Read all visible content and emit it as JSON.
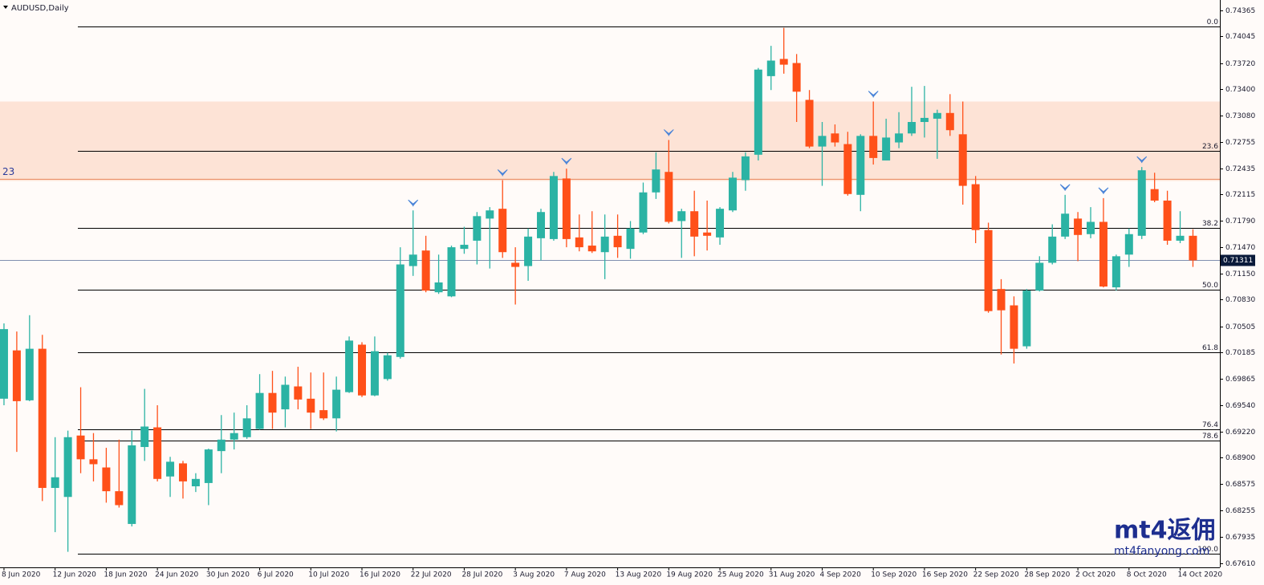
{
  "chart_data": {
    "type": "candlestick",
    "title": "AUDUSD,Daily",
    "categories": [
      "8 Jun 2020",
      null,
      null,
      null,
      "12 Jun 2020",
      null,
      null,
      null,
      "18 Jun 2020",
      null,
      null,
      null,
      "24 Jun 2020",
      null,
      null,
      null,
      "30 Jun 2020",
      null,
      null,
      null,
      "6 Jul 2020",
      null,
      null,
      null,
      "10 Jul 2020",
      null,
      null,
      null,
      "16 Jul 2020",
      null,
      null,
      null,
      "22 Jul 2020",
      null,
      null,
      null,
      "28 Jul 2020",
      null,
      null,
      null,
      "3 Aug 2020",
      null,
      null,
      null,
      "7 Aug 2020",
      null,
      null,
      null,
      "13 Aug 2020",
      null,
      null,
      null,
      "19 Aug 2020",
      null,
      null,
      null,
      "25 Aug 2020",
      null,
      null,
      null,
      "31 Aug 2020",
      null,
      null,
      null,
      "4 Sep 2020",
      null,
      null,
      null,
      "10 Sep 2020",
      null,
      null,
      null,
      "16 Sep 2020",
      null,
      null,
      null,
      "22 Sep 2020",
      null,
      null,
      null,
      "28 Sep 2020",
      null,
      null,
      null,
      "2 Oct 2020",
      null,
      null,
      null,
      "8 Oct 2020",
      null,
      null,
      null,
      "14 Oct 2020",
      null
    ],
    "open": [
      0.6962,
      0.7021,
      0.696,
      0.7023,
      0.6853,
      0.6842,
      0.6917,
      0.6888,
      0.6878,
      0.6849,
      0.6809,
      0.6903,
      0.6927,
      0.6867,
      0.6883,
      0.6855,
      0.6859,
      0.6898,
      0.6912,
      0.6915,
      0.6925,
      0.6969,
      0.6949,
      0.6977,
      0.6962,
      0.6948,
      0.6938,
      0.697,
      0.7028,
      0.6966,
      0.6986,
      0.7013,
      0.7124,
      0.7143,
      0.7092,
      0.7087,
      0.7145,
      0.7155,
      0.7182,
      0.7194,
      0.7128,
      0.7124,
      0.7158,
      0.7157,
      0.7231,
      0.7159,
      0.7149,
      0.7141,
      0.7161,
      0.7145,
      0.7165,
      0.7214,
      0.7239,
      0.7179,
      0.7191,
      0.7165,
      0.7159,
      0.7192,
      0.7229,
      0.726,
      0.7356,
      0.7377,
      0.7372,
      0.7327,
      0.727,
      0.7286,
      0.7273,
      0.7211,
      0.7283,
      0.7253,
      0.7275,
      0.7286,
      0.73,
      0.7304,
      0.7311,
      0.7285,
      0.7224,
      0.7168,
      0.7096,
      0.7076,
      0.7026,
      0.7094,
      0.7128,
      0.716,
      0.7182,
      0.7163,
      0.7178,
      0.7098,
      0.7138,
      0.7161,
      0.7218,
      0.7204,
      0.7155,
      0.7161
    ],
    "high": [
      0.7054,
      0.7044,
      0.7064,
      0.704,
      0.6915,
      0.6923,
      0.6976,
      0.692,
      0.6902,
      0.6912,
      0.6923,
      0.6974,
      0.6954,
      0.6891,
      0.6886,
      0.6871,
      0.6901,
      0.6942,
      0.6945,
      0.6954,
      0.6992,
      0.6996,
      0.6989,
      0.7001,
      0.6994,
      0.6994,
      0.6989,
      0.7038,
      0.7031,
      0.7038,
      0.7018,
      0.7147,
      0.7192,
      0.7161,
      0.7138,
      0.7149,
      0.7172,
      0.719,
      0.7196,
      0.7229,
      0.7147,
      0.717,
      0.7194,
      0.7239,
      0.7243,
      0.7187,
      0.7191,
      0.7187,
      0.7187,
      0.7179,
      0.7226,
      0.7263,
      0.7278,
      0.7194,
      0.7216,
      0.7204,
      0.7196,
      0.7239,
      0.7263,
      0.7366,
      0.7393,
      0.7415,
      0.7383,
      0.7339,
      0.73,
      0.7297,
      0.7288,
      0.7285,
      0.7325,
      0.7304,
      0.7312,
      0.7343,
      0.7344,
      0.7315,
      0.7334,
      0.7325,
      0.7234,
      0.7177,
      0.7108,
      0.7087,
      0.7096,
      0.7136,
      0.7175,
      0.7211,
      0.719,
      0.7196,
      0.7207,
      0.7138,
      0.717,
      0.7245,
      0.7238,
      0.7216,
      0.7191,
      0.7169
    ],
    "low": [
      0.6954,
      0.6897,
      0.6959,
      0.6837,
      0.6799,
      0.6775,
      0.6871,
      0.6861,
      0.6835,
      0.6829,
      0.6806,
      0.6886,
      0.6861,
      0.6842,
      0.684,
      0.6848,
      0.6832,
      0.6871,
      0.69,
      0.6913,
      0.6924,
      0.6925,
      0.6927,
      0.6949,
      0.6925,
      0.6936,
      0.6922,
      0.6969,
      0.6964,
      0.6965,
      0.6984,
      0.7011,
      0.7112,
      0.7092,
      0.709,
      0.7086,
      0.7139,
      0.7126,
      0.7121,
      0.7134,
      0.7077,
      0.7106,
      0.7131,
      0.7155,
      0.7147,
      0.7142,
      0.714,
      0.7108,
      0.7134,
      0.7133,
      0.7163,
      0.7206,
      0.7176,
      0.7134,
      0.7136,
      0.7143,
      0.715,
      0.719,
      0.7216,
      0.7253,
      0.7339,
      0.7359,
      0.73,
      0.7268,
      0.7222,
      0.727,
      0.721,
      0.7191,
      0.7248,
      0.7253,
      0.7268,
      0.7283,
      0.7281,
      0.7255,
      0.7283,
      0.7199,
      0.7152,
      0.7067,
      0.7016,
      0.7005,
      0.7023,
      0.7093,
      0.7126,
      0.7157,
      0.713,
      0.7158,
      0.7098,
      0.7094,
      0.7123,
      0.7157,
      0.7202,
      0.715,
      0.7152,
      0.7123
    ],
    "close": [
      0.7047,
      0.6959,
      0.7023,
      0.6853,
      0.6866,
      0.6915,
      0.6888,
      0.6882,
      0.6849,
      0.6832,
      0.6905,
      0.6928,
      0.6864,
      0.6885,
      0.6861,
      0.6864,
      0.69,
      0.6912,
      0.692,
      0.6938,
      0.6969,
      0.6945,
      0.6979,
      0.6961,
      0.6945,
      0.6938,
      0.6973,
      0.7033,
      0.6966,
      0.702,
      0.7015,
      0.7126,
      0.7138,
      0.7094,
      0.7104,
      0.7147,
      0.715,
      0.7185,
      0.7192,
      0.7141,
      0.7123,
      0.716,
      0.719,
      0.7234,
      0.7157,
      0.7147,
      0.7142,
      0.716,
      0.7147,
      0.717,
      0.7214,
      0.7242,
      0.7178,
      0.7191,
      0.716,
      0.7161,
      0.7194,
      0.7232,
      0.7258,
      0.7364,
      0.7375,
      0.737,
      0.7337,
      0.727,
      0.7283,
      0.7275,
      0.7212,
      0.7283,
      0.7256,
      0.7281,
      0.7286,
      0.73,
      0.7305,
      0.7311,
      0.729,
      0.7222,
      0.7168,
      0.7069,
      0.707,
      0.7023,
      0.7094,
      0.7128,
      0.716,
      0.7188,
      0.7162,
      0.7178,
      0.7099,
      0.7136,
      0.7163,
      0.7241,
      0.7204,
      0.7155,
      0.7161,
      0.7131
    ],
    "up_color": "#2bb3a4",
    "down_color": "#ff5019",
    "ylim": [
      0.6756,
      0.7449
    ],
    "yticks": [
      0.74365,
      0.74045,
      {
        "value": 0.7372,
        "label": "0.73720"
      },
      {
        "value": 0.734,
        "label": "0.73400"
      },
      {
        "value": 0.7308,
        "label": "0.73080"
      },
      0.72755,
      0.72435,
      0.72115,
      {
        "value": 0.7179,
        "label": "0.71790"
      },
      {
        "value": 0.7147,
        "label": "0.71470"
      },
      {
        "value": 0.7115,
        "label": "0.71150"
      },
      {
        "value": 0.7083,
        "label": "0.70830"
      },
      0.70505,
      0.70185,
      0.69865,
      {
        "value": 0.6954,
        "label": "0.69540"
      },
      {
        "value": 0.6922,
        "label": "0.69220"
      },
      {
        "value": 0.689,
        "label": "0.68900"
      },
      0.68575,
      0.68255,
      0.67935,
      {
        "value": 0.6761,
        "label": "0.67610"
      }
    ],
    "current_price": 0.71311,
    "zone": [
      0.7228,
      0.7325
    ],
    "hline": {
      "value": 0.723,
      "label": "23"
    },
    "fibo": {
      "high": 0.7417,
      "low": 0.6773,
      "levels": [
        {
          "value": 0,
          "label": "0.0"
        },
        23.6,
        38.2,
        {
          "value": 50,
          "label": "50.0"
        },
        61.8,
        76.4,
        78.6,
        {
          "value": 100,
          "label": "100.0"
        }
      ]
    },
    "up_fractals": [
      32,
      39,
      44,
      52,
      68,
      83,
      86,
      89
    ],
    "watermark": [
      "mt4返佣",
      "mt4fanyong.com"
    ]
  }
}
